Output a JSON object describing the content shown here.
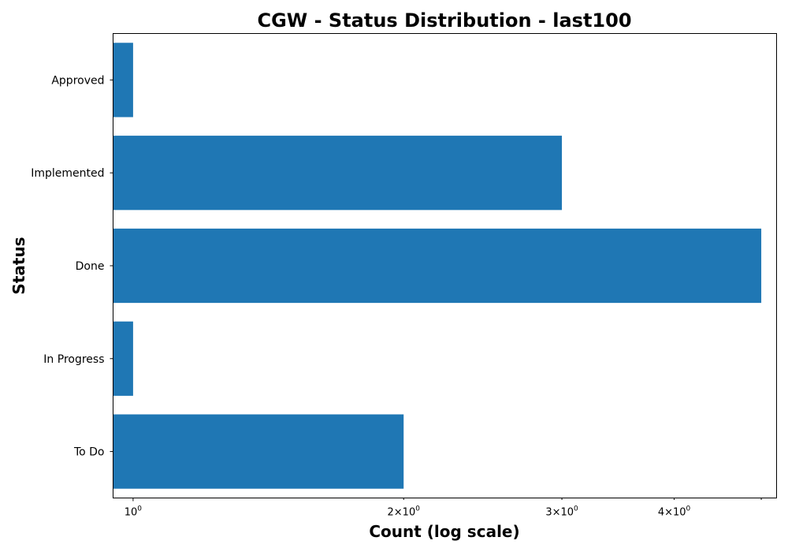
{
  "chart_data": {
    "type": "bar",
    "orientation": "horizontal",
    "title": "CGW - Status Distribution - last100",
    "xlabel": "Count (log scale)",
    "ylabel": "Status",
    "x_scale": "log",
    "xlim": [
      0.95,
      5.2
    ],
    "categories": [
      "Approved",
      "Implemented",
      "Done",
      "In Progress",
      "To Do"
    ],
    "values": [
      1,
      3,
      5,
      1,
      2
    ],
    "bar_color": "#1f77b4",
    "x_major_ticks": [
      {
        "value": 1,
        "base": "10",
        "exp": "0"
      }
    ],
    "x_minor_ticks": [
      {
        "value": 2,
        "mult": "2",
        "base": "10",
        "exp": "0"
      },
      {
        "value": 3,
        "mult": "3",
        "base": "10",
        "exp": "0"
      },
      {
        "value": 4,
        "mult": "4",
        "base": "10",
        "exp": "0"
      }
    ],
    "x_unlabeled_minor_ticks": [
      5
    ],
    "grid": false,
    "legend": "none"
  }
}
